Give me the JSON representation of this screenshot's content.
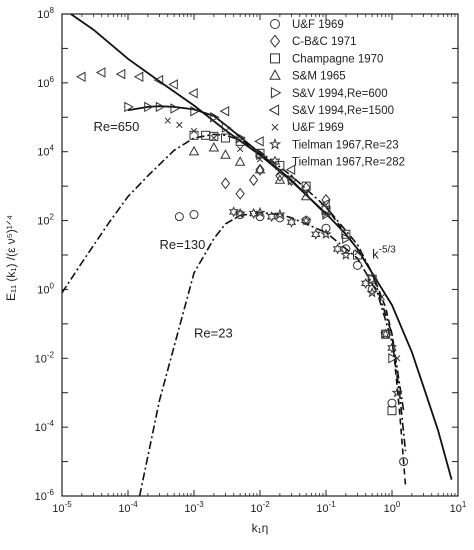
{
  "chart_data": {
    "type": "scatter",
    "xlabel": "k₁η",
    "ylabel": "E₁₁ (k₁) /(ε ν⁵)¹ᐟ⁴",
    "x_scale": "log",
    "y_scale": "log",
    "xlim": [
      1e-05,
      10
    ],
    "ylim": [
      1e-06,
      100000000.0
    ],
    "x_ticks": [
      {
        "value": 1e-05,
        "base": "10",
        "exp": "-5"
      },
      {
        "value": 0.0001,
        "base": "10",
        "exp": "-4"
      },
      {
        "value": 0.001,
        "base": "10",
        "exp": "-3"
      },
      {
        "value": 0.01,
        "base": "10",
        "exp": "-2"
      },
      {
        "value": 0.1,
        "base": "10",
        "exp": "-1"
      },
      {
        "value": 1,
        "base": "10",
        "exp": "0"
      },
      {
        "value": 10,
        "base": "10",
        "exp": "1"
      }
    ],
    "y_ticks": [
      {
        "value": 1e-06,
        "base": "10",
        "exp": "-6"
      },
      {
        "value": 0.0001,
        "base": "10",
        "exp": "-4"
      },
      {
        "value": 0.01,
        "base": "10",
        "exp": "-2"
      },
      {
        "value": 1,
        "base": "10",
        "exp": "0"
      },
      {
        "value": 100.0,
        "base": "10",
        "exp": "2"
      },
      {
        "value": 10000.0,
        "base": "10",
        "exp": "4"
      },
      {
        "value": 1000000.0,
        "base": "10",
        "exp": "6"
      },
      {
        "value": 100000000.0,
        "base": "10",
        "exp": "8"
      }
    ],
    "grid": false,
    "legend_position": "top-right",
    "lines": [
      {
        "style": "solid",
        "x": [
          1e-05,
          3e-05,
          0.0001,
          0.0003,
          0.001,
          0.003,
          0.01,
          0.03,
          0.1,
          0.2,
          0.3,
          0.5,
          1,
          2,
          3,
          5,
          8
        ],
        "y": [
          150000000.0,
          35000000.0,
          5000000.0,
          1100000.0,
          220000.0,
          42000.0,
          8000.0,
          1400.0,
          160,
          40,
          15,
          3,
          0.35,
          0.015,
          0.0015,
          8e-05,
          3e-06
        ]
      },
      {
        "style": "solid",
        "x": [
          0.0001,
          0.0002,
          0.0003,
          0.0005,
          0.001,
          0.002,
          0.003,
          0.01,
          0.03,
          0.1
        ],
        "y": [
          160000.0,
          200000.0,
          210000.0,
          200000.0,
          170000.0,
          110000.0,
          60000.0,
          9000.0,
          1500.0,
          150
        ]
      },
      {
        "style": "dashdot",
        "x": [
          1e-05,
          2e-05,
          5e-05,
          0.0001,
          0.0002,
          0.0005,
          0.001,
          0.002,
          0.003,
          0.005,
          0.01,
          0.03,
          0.1,
          0.3,
          0.5,
          1,
          1.5
        ],
        "y": [
          0.8,
          6,
          80,
          500,
          2000,
          11000.0,
          25000.0,
          32000.0,
          30000.0,
          22000.0,
          10000.0,
          2000.0,
          250,
          20,
          3,
          0.05,
          0.0003
        ]
      },
      {
        "style": "dashdot",
        "x": [
          0.00015,
          0.0003,
          0.001,
          0.002,
          0.003,
          0.005,
          0.01,
          0.02,
          0.03,
          0.1,
          0.3,
          0.6,
          1,
          1.3,
          1.6
        ],
        "y": [
          1e-06,
          0.0006,
          3,
          30,
          80,
          140,
          170,
          150,
          120,
          45,
          8,
          0.8,
          0.03,
          0.001,
          2e-05
        ]
      },
      {
        "style": "dashed",
        "x": [
          0.1,
          0.2,
          0.3,
          0.5,
          0.8,
          1,
          1.3,
          1.6
        ],
        "y": [
          250,
          40,
          15,
          3,
          0.3,
          0.05,
          0.0003,
          2e-06
        ]
      }
    ],
    "series": [
      {
        "name": "U&F 1969",
        "marker": "circle",
        "x": [
          0.0006,
          0.001,
          0.005,
          0.01,
          0.02,
          0.05,
          0.1,
          0.2,
          0.3,
          0.5,
          0.8,
          1,
          1.5
        ],
        "y": [
          130,
          150,
          150,
          130,
          120,
          100,
          60,
          15,
          5,
          1,
          0.05,
          0.0005,
          1e-05
        ]
      },
      {
        "name": "C-B&C 1971",
        "marker": "diamond",
        "x": [
          0.003,
          0.005,
          0.008,
          0.01,
          0.02,
          0.03,
          0.05,
          0.1
        ],
        "y": [
          1200,
          600,
          1500,
          3000,
          2000,
          1500,
          900,
          400
        ]
      },
      {
        "name": "Champagne 1970",
        "marker": "square",
        "x": [
          0.001,
          0.0015,
          0.002,
          0.003,
          0.005,
          0.01,
          0.02,
          0.05,
          0.1,
          0.2,
          0.3,
          0.5,
          0.8,
          1
        ],
        "y": [
          30000.0,
          30000.0,
          28000.0,
          25000.0,
          20000.0,
          9000,
          4000,
          1000,
          200,
          40,
          10,
          2,
          0.05,
          0.0003
        ]
      },
      {
        "name": "S&M 1965",
        "marker": "triangle-up",
        "x": [
          0.001,
          0.002,
          0.003,
          0.005,
          0.01,
          0.02,
          0.05
        ],
        "y": [
          10000.0,
          13000.0,
          8000,
          5000,
          3000,
          1500,
          500
        ]
      },
      {
        "name": "S&V 1994,Re=600",
        "marker": "triangle-right",
        "x": [
          0.0001,
          0.0002,
          0.0003,
          0.0005,
          0.001,
          0.002,
          0.003,
          0.005,
          0.01,
          0.03,
          0.1,
          0.2,
          0.5,
          1
        ],
        "y": [
          200000.0,
          200000.0,
          200000.0,
          180000.0,
          150000.0,
          100000.0,
          50000.0,
          25000.0,
          8000,
          1500,
          150,
          30,
          2,
          0.01
        ]
      },
      {
        "name": "S&V 1994,Re=1500",
        "marker": "triangle-left",
        "x": [
          2e-05,
          4e-05,
          8e-05,
          0.00015,
          0.0003,
          0.0005,
          0.001,
          0.003,
          0.01,
          0.03,
          0.1
        ],
        "y": [
          1500000.0,
          2000000.0,
          1800000.0,
          1500000.0,
          1200000.0,
          900000.0,
          500000.0,
          150000.0,
          20000.0,
          3000,
          300
        ]
      },
      {
        "name": "U&F 1969",
        "marker": "cross",
        "x": [
          0.0004,
          0.0006,
          0.001,
          0.002,
          0.005,
          0.01,
          0.02,
          0.05,
          0.1,
          0.3,
          0.7,
          1.2
        ],
        "y": [
          80000.0,
          60000.0,
          40000.0,
          25000.0,
          12000.0,
          6000,
          2500,
          600,
          150,
          12,
          0.6,
          0.01
        ]
      },
      {
        "name": "Tielman 1967,Re=23",
        "marker": "star",
        "x": [
          0.005,
          0.01,
          0.02,
          0.05,
          0.1,
          0.2,
          0.5,
          0.8,
          1.2
        ],
        "y": [
          160,
          170,
          150,
          100,
          40,
          10,
          0.8,
          0.05,
          0.001
        ]
      },
      {
        "name": "Tielman 1967,Re=282",
        "marker": "star6",
        "x": [
          0.004,
          0.008,
          0.015,
          0.03,
          0.07,
          0.15,
          0.4,
          1
        ],
        "y": [
          180,
          160,
          130,
          90,
          40,
          15,
          1.5,
          0.02
        ]
      }
    ],
    "annotations": [
      {
        "text": "Re=650",
        "x": 3e-05,
        "y": 40000.0
      },
      {
        "text": "Re=130",
        "x": 0.0003,
        "y": 15
      },
      {
        "text": "Re=23",
        "x": 0.001,
        "y": 0.04
      },
      {
        "text": "k",
        "sup": "-5/3",
        "x": 0.5,
        "y": 8
      }
    ]
  }
}
